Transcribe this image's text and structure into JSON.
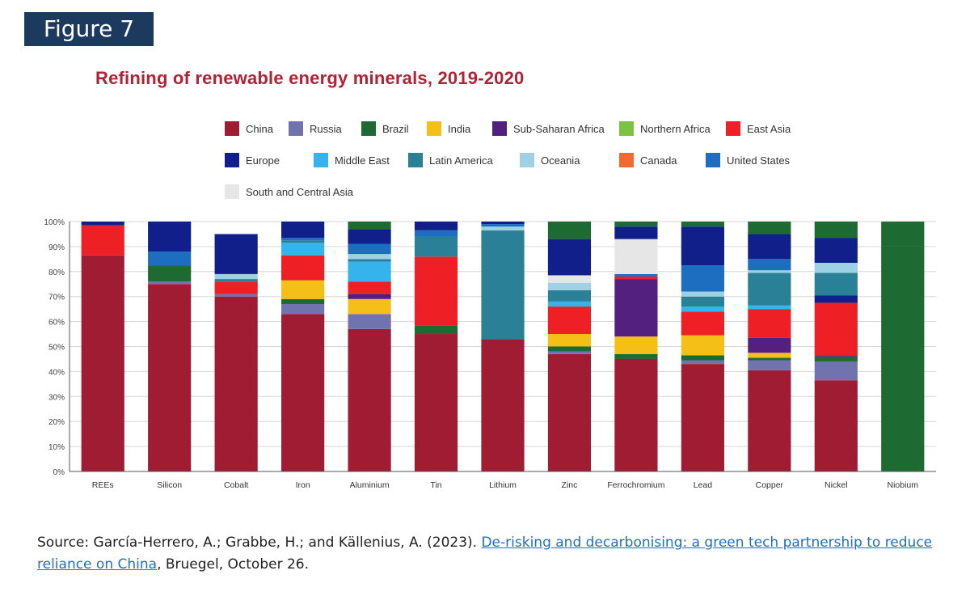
{
  "figure_label": "Figure 7",
  "source": {
    "prefix": "Source: García-Herrero, A.; Grabbe, H.; and Källenius, A. (2023). ",
    "link_text": "De-risking and decarbonising: a green tech partnership to reduce reliance on China",
    "suffix": ", Bruegel, October 26."
  },
  "chart_data": {
    "type": "bar",
    "stacked": true,
    "title": "Refining of renewable energy minerals, 2019-2020",
    "xlabel": "",
    "ylabel": "",
    "ylim": [
      0,
      100
    ],
    "yticks": [
      "0%",
      "10%",
      "20%",
      "30%",
      "40%",
      "50%",
      "60%",
      "70%",
      "80%",
      "90%",
      "100%"
    ],
    "categories": [
      "REEs",
      "Silicon",
      "Cobalt",
      "Iron",
      "Aluminium",
      "Tin",
      "Lithium",
      "Zinc",
      "Ferrochromium",
      "Lead",
      "Copper",
      "Nickel",
      "Niobium"
    ],
    "series": [
      {
        "name": "China",
        "color": "#a01c32",
        "values": [
          86.5,
          75,
          70,
          63,
          57,
          55,
          53,
          47,
          45,
          43,
          40.5,
          36.5,
          0
        ]
      },
      {
        "name": "Russia",
        "color": "#7073ad",
        "values": [
          0,
          1,
          1,
          4,
          6,
          0,
          0,
          1,
          0,
          1.5,
          4,
          7.5,
          0
        ]
      },
      {
        "name": "Brazil",
        "color": "#1d6a32",
        "values": [
          0,
          6.5,
          0,
          2,
          0,
          3.5,
          0,
          2,
          2,
          2,
          1,
          2,
          90
        ]
      },
      {
        "name": "India",
        "color": "#f4c017",
        "values": [
          0,
          0,
          0,
          7.5,
          6,
          0,
          0,
          5,
          7,
          8,
          2,
          0,
          0
        ]
      },
      {
        "name": "Sub-Saharan Africa",
        "color": "#53207f",
        "values": [
          0,
          0,
          0,
          0,
          2,
          0,
          0,
          0,
          23,
          0,
          6,
          0.5,
          0
        ]
      },
      {
        "name": "Northern Africa",
        "color": "#7dc343",
        "values": [
          0,
          0,
          0,
          0,
          0,
          0,
          0,
          0,
          0,
          0,
          0,
          0,
          0
        ]
      },
      {
        "name": "East Asia",
        "color": "#ee1f25",
        "values": [
          12,
          0,
          5,
          10,
          5,
          27.5,
          0,
          11,
          1,
          9.5,
          11.5,
          21,
          0
        ]
      },
      {
        "name": "Europe",
        "color": "#101f8a",
        "values": [
          1.5,
          0,
          0,
          0,
          0,
          0,
          0,
          0,
          0,
          0,
          0,
          3,
          0
        ]
      },
      {
        "name": "Middle East",
        "color": "#34b3ec",
        "values": [
          0,
          0,
          0,
          5,
          8,
          0,
          0,
          2,
          0,
          2,
          1.5,
          0,
          0
        ]
      },
      {
        "name": "Latin America",
        "color": "#2a8197",
        "values": [
          0,
          0,
          1,
          1,
          1,
          8,
          43.5,
          4.5,
          0,
          4,
          13,
          9,
          0
        ]
      },
      {
        "name": "Oceania",
        "color": "#9fd1e4",
        "values": [
          0,
          0,
          2,
          0,
          2,
          0,
          1.5,
          3,
          0,
          2,
          1,
          4,
          0
        ]
      },
      {
        "name": "Canada",
        "color": "#f26a30",
        "values": [
          0,
          0,
          0,
          0,
          0,
          0,
          0,
          0,
          0,
          0,
          0,
          0,
          0
        ]
      },
      {
        "name": "United States",
        "color": "#1d6ec1",
        "values": [
          0,
          5.5,
          0,
          1,
          4,
          2.5,
          1,
          0,
          1,
          10.5,
          4.5,
          0,
          0
        ]
      },
      {
        "name": "South and Central Asia",
        "color": "#e6e6e6",
        "values": [
          0,
          0,
          0,
          0,
          0,
          0,
          0,
          3,
          14,
          0,
          0,
          0,
          0
        ]
      },
      {
        "name": "Europe (top)",
        "color": "#101f8a",
        "values": [
          0,
          12,
          16,
          6.5,
          6,
          3.5,
          1,
          14.5,
          5,
          15.5,
          10,
          10,
          0
        ]
      },
      {
        "name": "Brazil (top)",
        "color": "#1d6a32",
        "values": [
          0,
          0,
          0,
          0,
          3,
          0,
          0,
          7,
          2,
          2,
          5,
          6.5,
          10
        ]
      }
    ]
  }
}
